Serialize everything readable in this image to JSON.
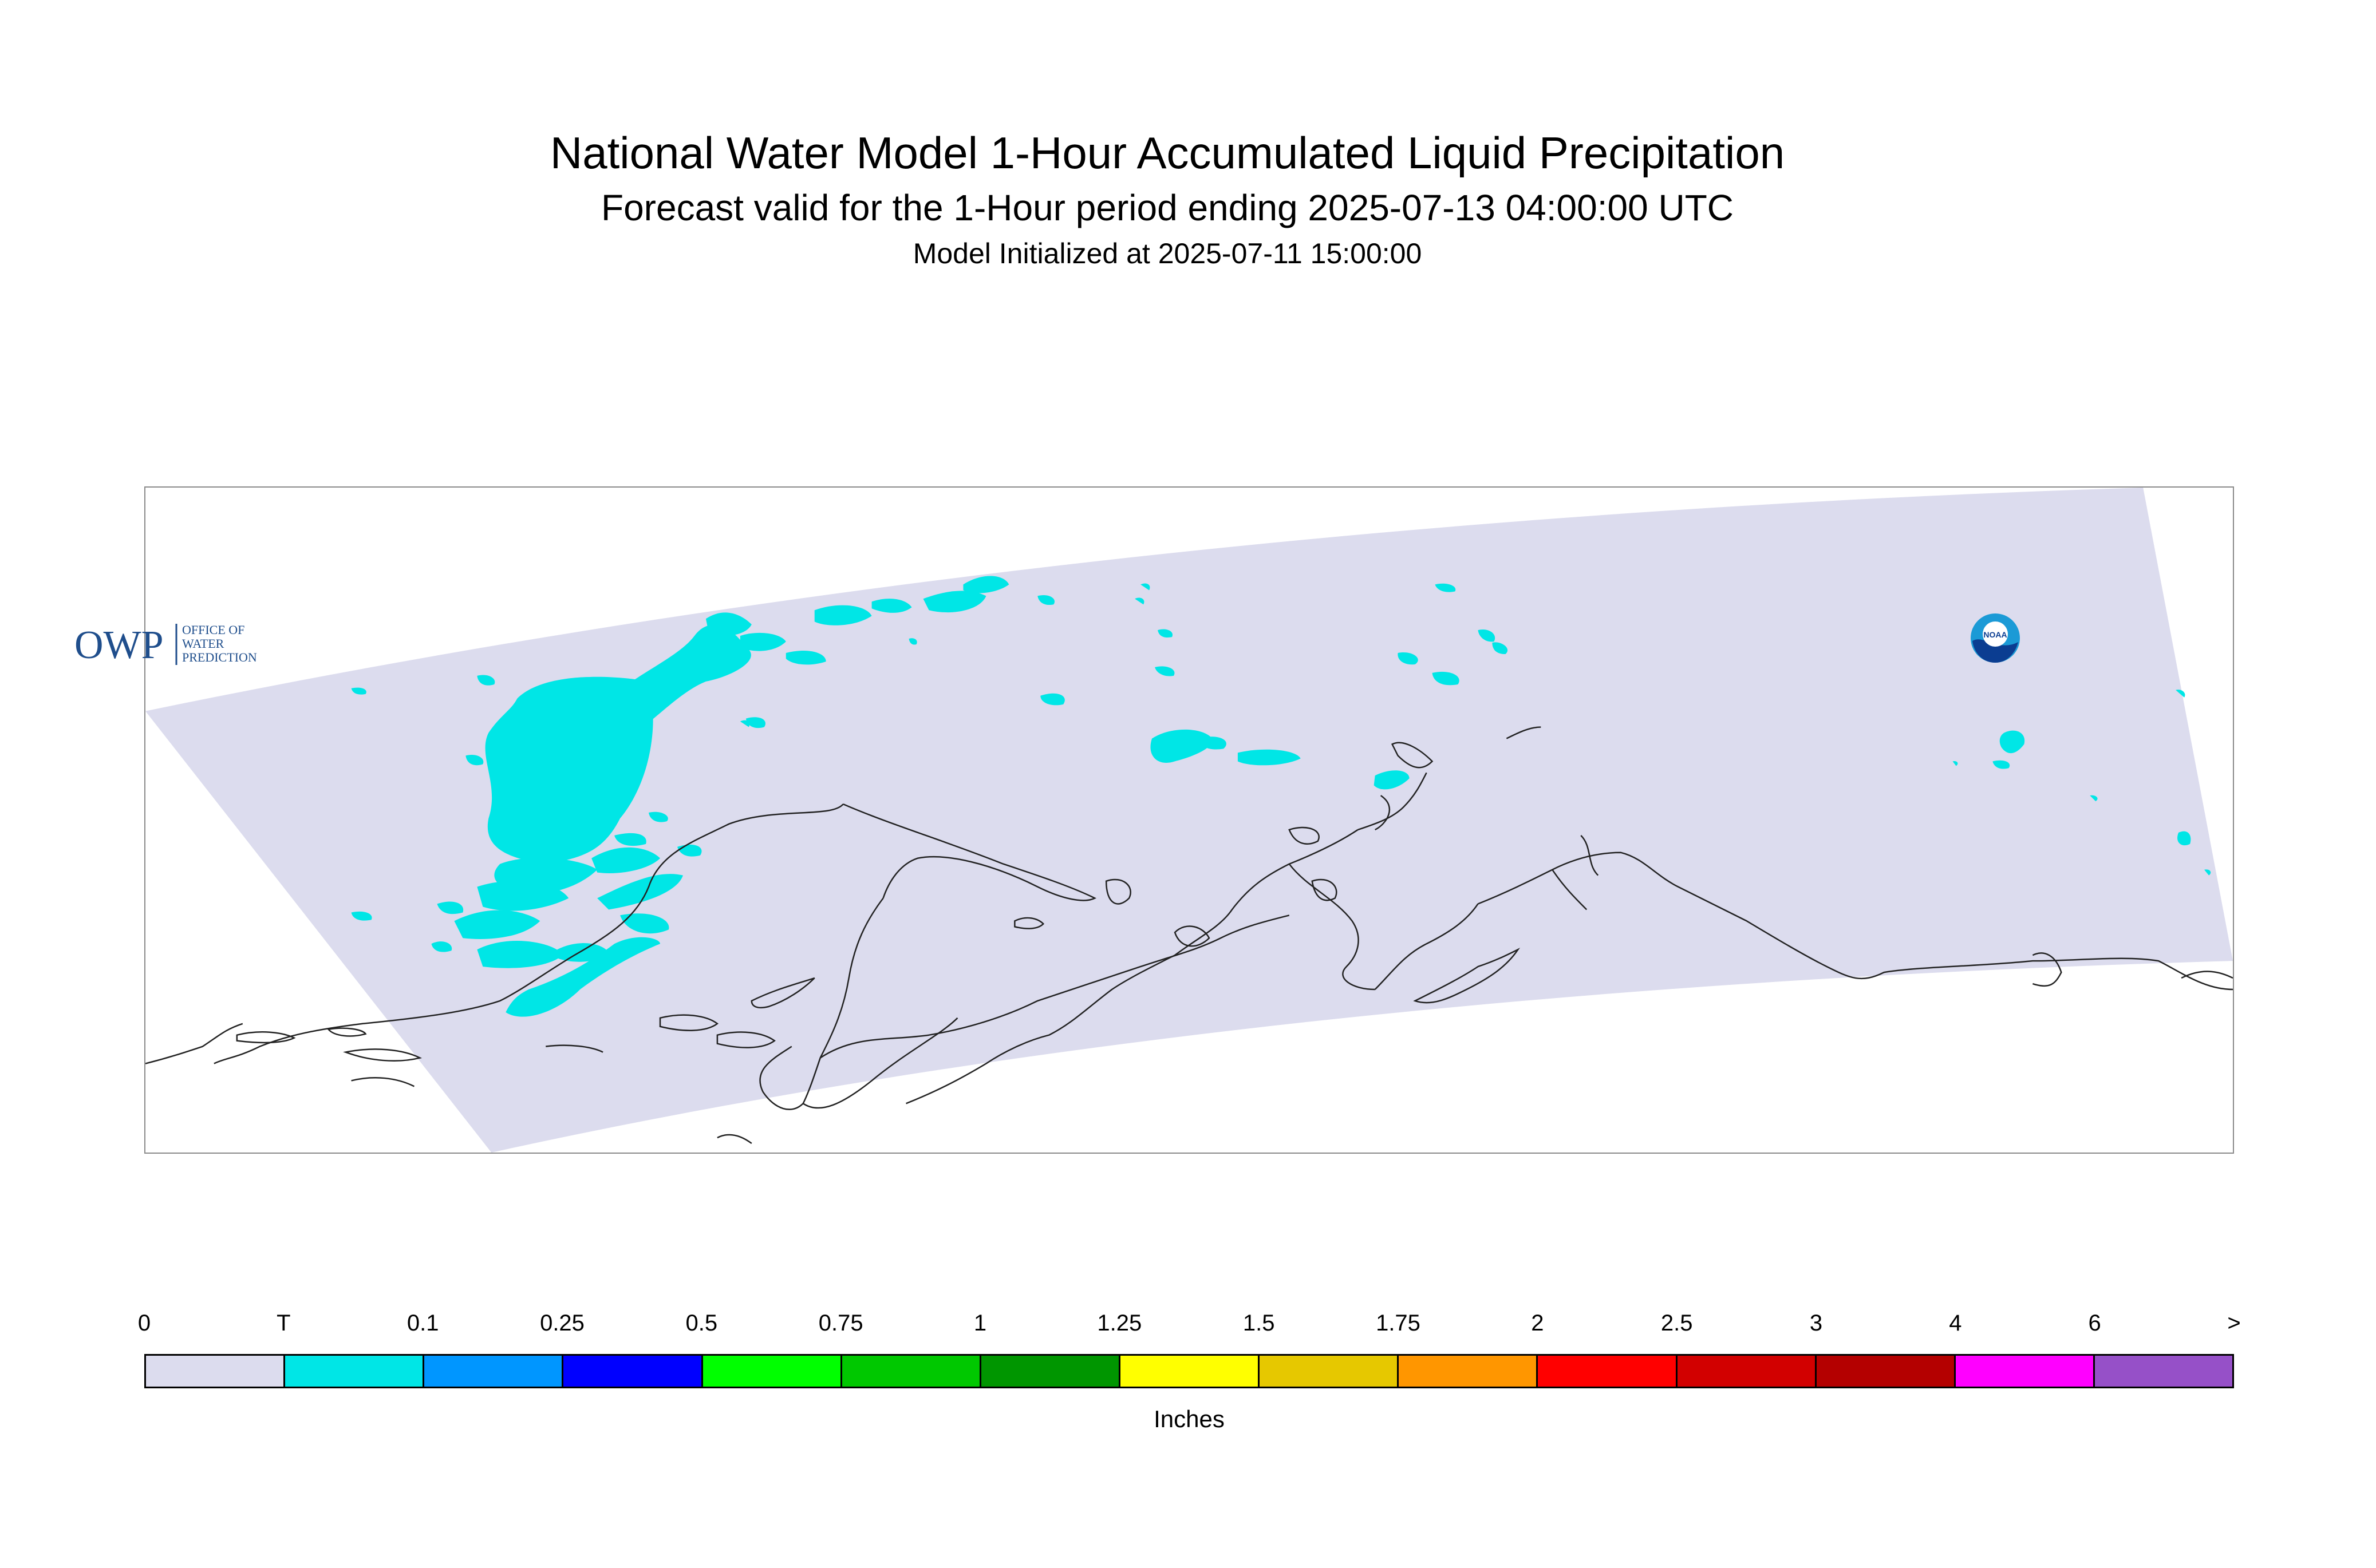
{
  "title": "National Water Model 1-Hour Accumulated Liquid Precipitation",
  "subtitle": "Forecast valid for the 1-Hour period ending 2025-07-13 04:00:00 UTC",
  "init_line": "Model Initialized at 2025-07-11 15:00:00",
  "logos": {
    "owp_main": "OWP",
    "owp_sub": [
      "OFFICE OF",
      "WATER",
      "PREDICTION"
    ],
    "noaa": "NOAA"
  },
  "colors": {
    "domain_fill": "#dcdcee",
    "trace_fill": "#00e6e6",
    "coastline": "#222222"
  },
  "legend": {
    "units": "Inches",
    "tick_labels": [
      "0",
      "T",
      "0.1",
      "0.25",
      "0.5",
      "0.75",
      "1",
      "1.25",
      "1.5",
      "1.75",
      "2",
      "2.5",
      "3",
      "4",
      "6",
      ">"
    ],
    "bins": [
      {
        "color": "#dcdcee"
      },
      {
        "color": "#00e6e6"
      },
      {
        "color": "#0096ff"
      },
      {
        "color": "#0000ff"
      },
      {
        "color": "#00ff00"
      },
      {
        "color": "#00c800"
      },
      {
        "color": "#009600"
      },
      {
        "color": "#ffff00"
      },
      {
        "color": "#e6c800"
      },
      {
        "color": "#ff9600"
      },
      {
        "color": "#ff0000"
      },
      {
        "color": "#d20000"
      },
      {
        "color": "#b40000"
      },
      {
        "color": "#ff00ff"
      },
      {
        "color": "#9650c8"
      }
    ]
  }
}
